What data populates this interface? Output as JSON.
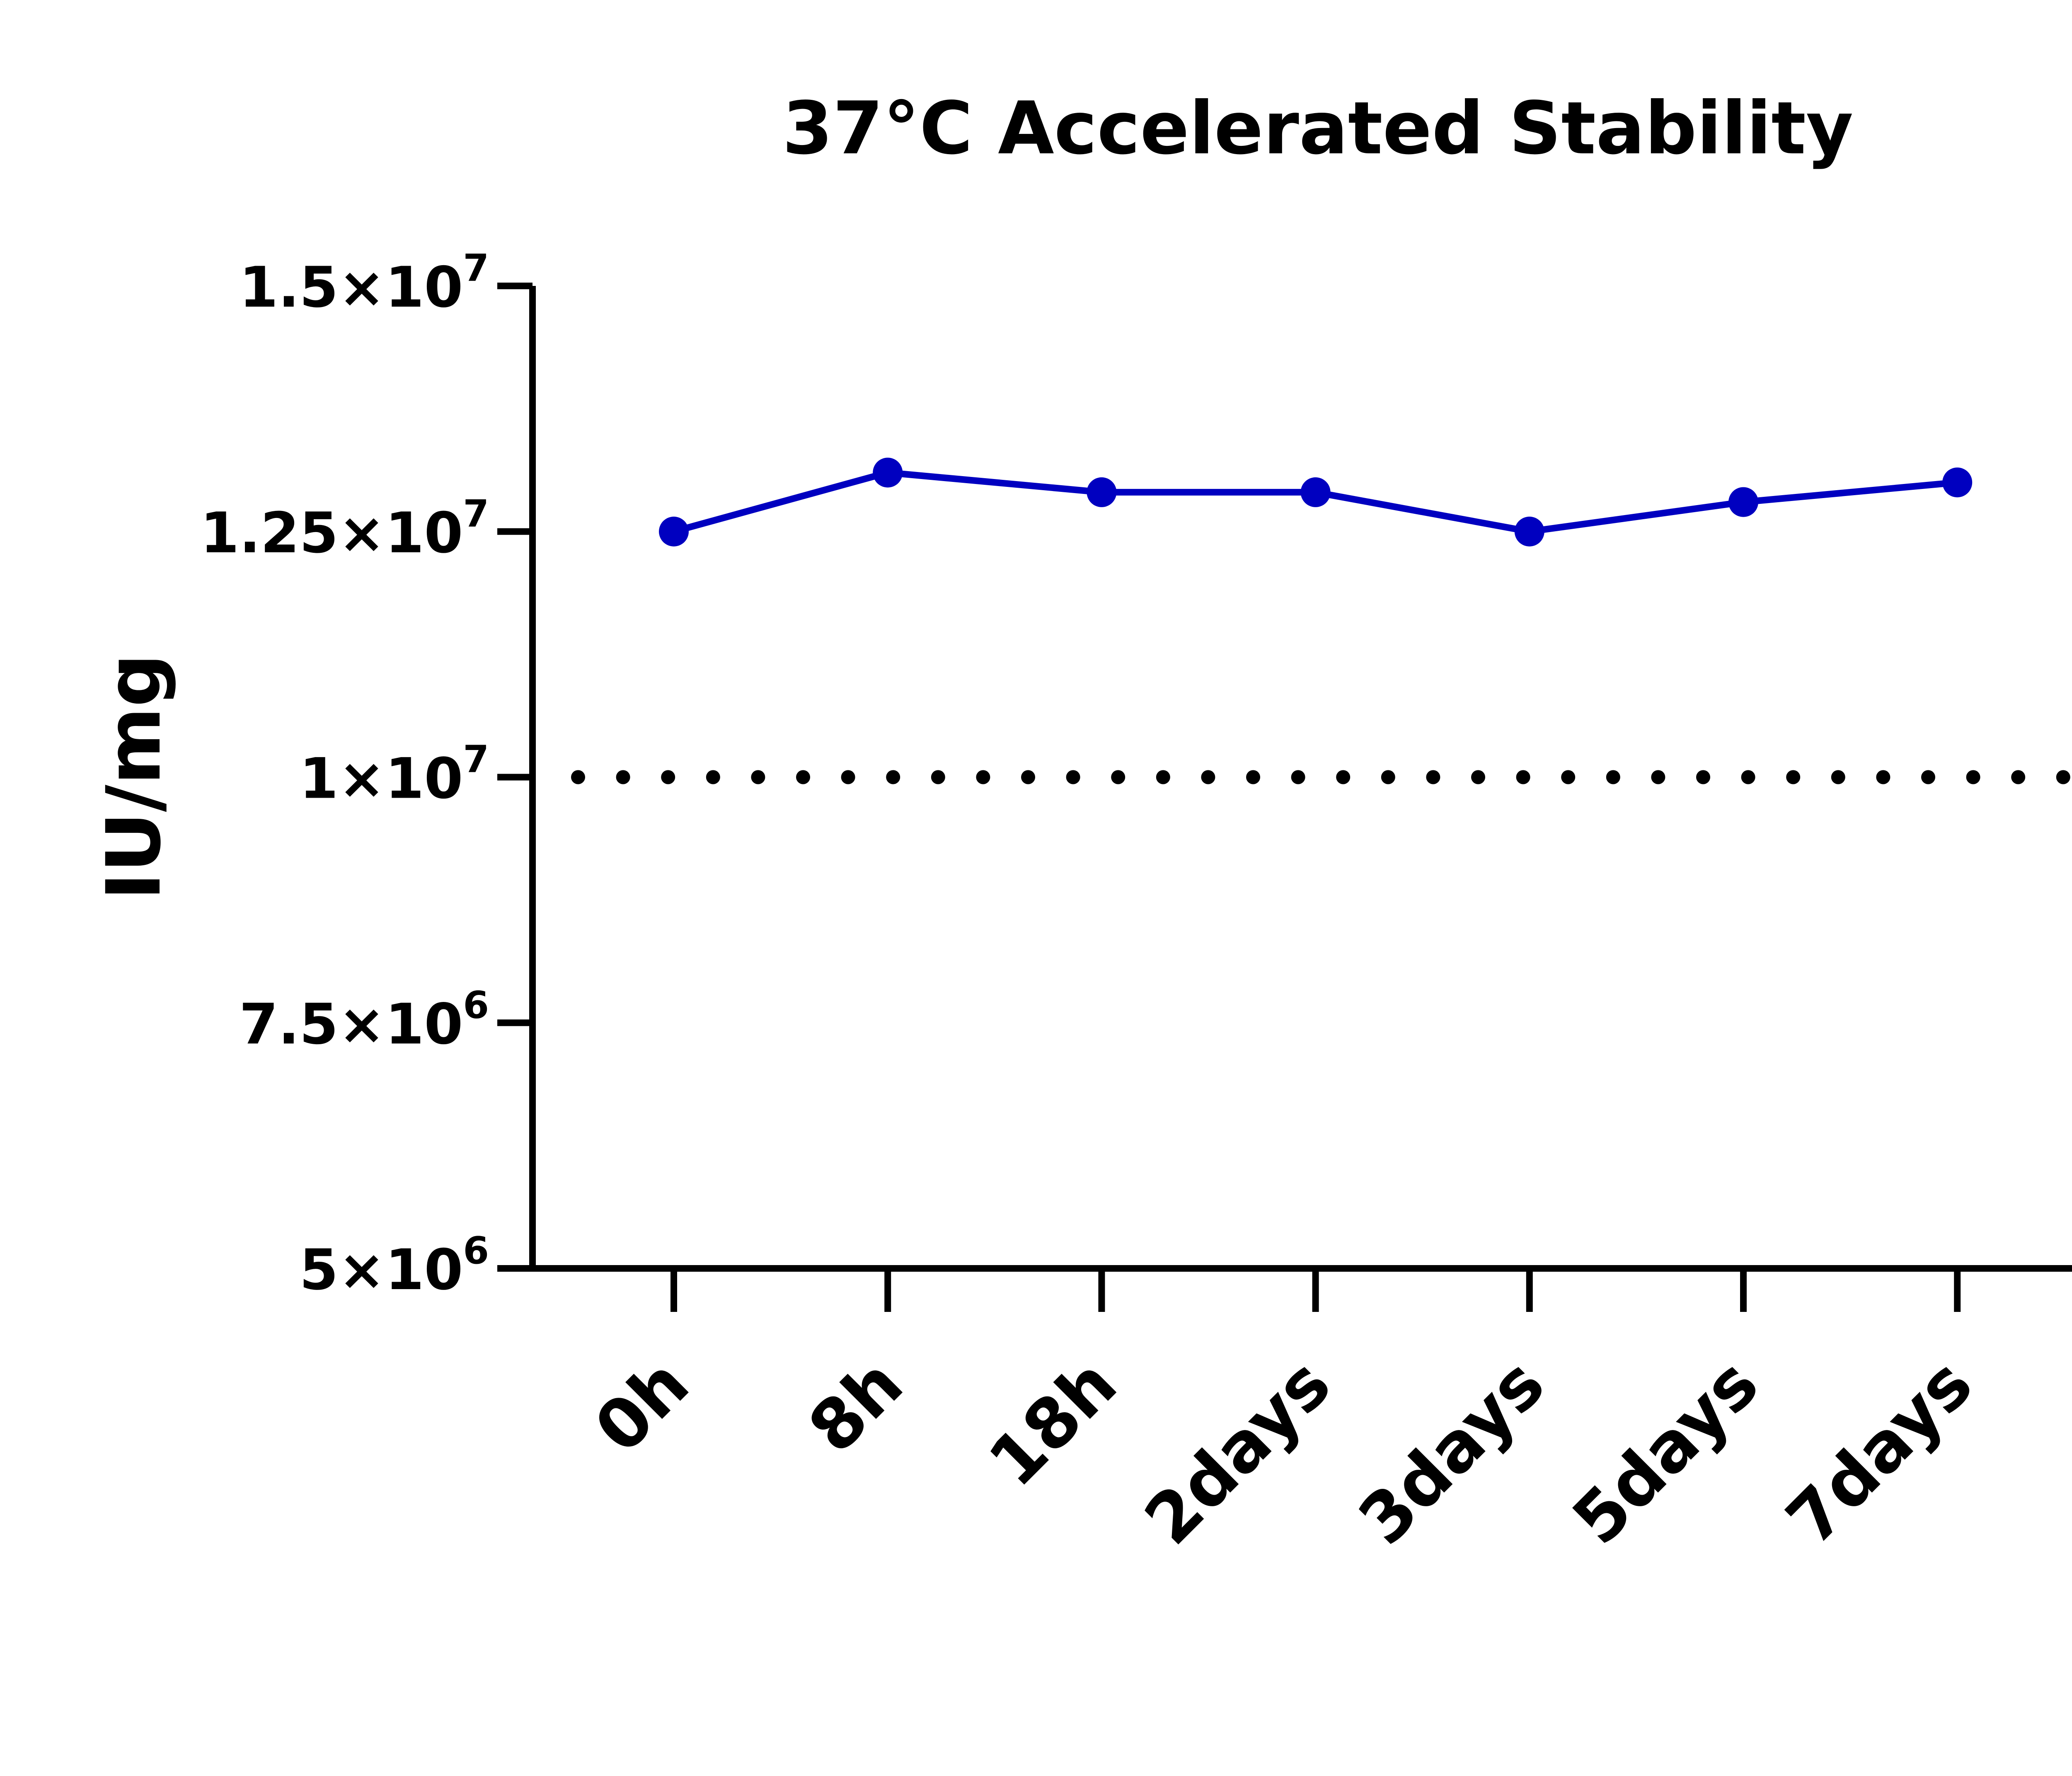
{
  "chart_data": {
    "type": "line",
    "title": "37°C Accelerated Stability",
    "xlabel": "",
    "ylabel": "IU/mg",
    "categories": [
      "0h",
      "8h",
      "18h",
      "2days",
      "3days",
      "5days",
      "7days"
    ],
    "series": [
      {
        "name": "IU/mg",
        "values": [
          12500000,
          13100000,
          12900000,
          12900000,
          12500000,
          12800000,
          13000000
        ],
        "color": "#0000C0"
      }
    ],
    "ylim": [
      5000000,
      15000000
    ],
    "yticks": [
      5000000,
      7500000,
      10000000,
      12500000,
      15000000
    ],
    "ytick_labels": [
      {
        "base": "5×10",
        "exp": "6"
      },
      {
        "base": "7.5×10",
        "exp": "6"
      },
      {
        "base": "1×10",
        "exp": "7"
      },
      {
        "base": "1.25×10",
        "exp": "7"
      },
      {
        "base": "1.5×10",
        "exp": "7"
      }
    ],
    "reference_line": {
      "value": 10000000,
      "style": "dotted",
      "color": "#000000"
    },
    "grid": false,
    "legend": "none"
  }
}
